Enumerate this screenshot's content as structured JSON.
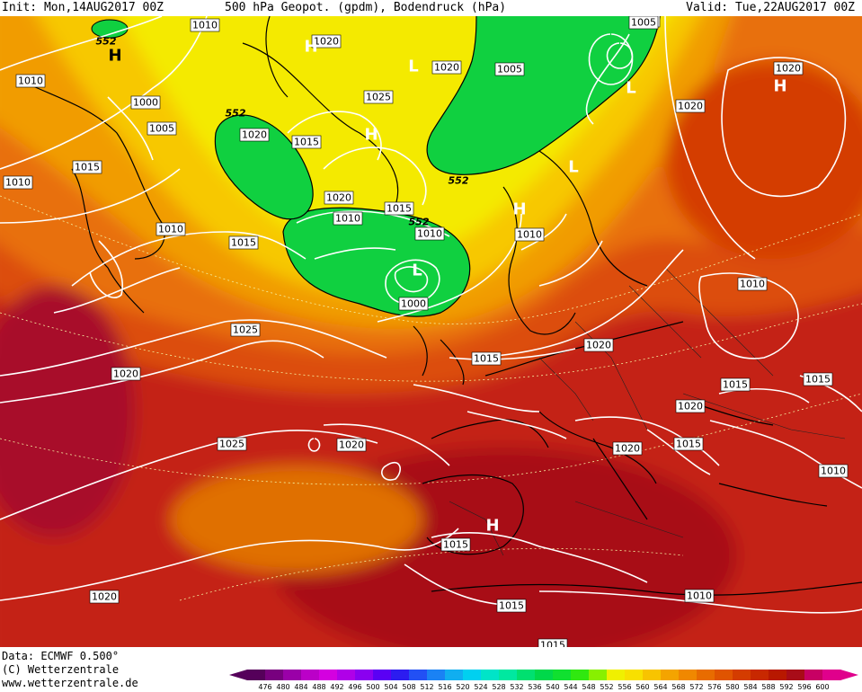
{
  "header": {
    "init": "Init: Mon,14AUG2017 00Z",
    "title": "500 hPa Geopot. (gpdm), Bodendruck (hPa)",
    "valid": "Valid: Tue,22AUG2017 00Z"
  },
  "footer": {
    "data": "Data: ECMWF  0.500°",
    "copyright": "(C) Wetterzentrale",
    "url": "www.wetterzentrale.de"
  },
  "colorbar": {
    "levels": [
      "476",
      "480",
      "484",
      "488",
      "492",
      "496",
      "500",
      "504",
      "508",
      "512",
      "516",
      "520",
      "524",
      "528",
      "532",
      "536",
      "540",
      "544",
      "548",
      "552",
      "556",
      "560",
      "564",
      "568",
      "572",
      "576",
      "580",
      "584",
      "588",
      "592",
      "596",
      "600"
    ],
    "colors": [
      "#55005a",
      "#78007f",
      "#9a00a8",
      "#bb00c8",
      "#d400e0",
      "#b000e8",
      "#8a00f0",
      "#5a00f4",
      "#2c1cf0",
      "#2250f4",
      "#1a82f4",
      "#10aef0",
      "#00d0f0",
      "#00e4c8",
      "#00e8a0",
      "#00e070",
      "#00d84a",
      "#10e030",
      "#30e810",
      "#88f000",
      "#f0f000",
      "#f8e000",
      "#f8c400",
      "#f4a400",
      "#f08800",
      "#e86c00",
      "#e05400",
      "#d43c00",
      "#c82800",
      "#b81800",
      "#a80c18",
      "#c80064",
      "#e0008c"
    ]
  },
  "isobar_labels": [
    "1010",
    "1005",
    "1000",
    "1005",
    "1015",
    "1020",
    "1010",
    "1015",
    "1020",
    "1010",
    "1015",
    "1025",
    "1010",
    "1020",
    "1015",
    "1010",
    "1015",
    "1020",
    "1025",
    "1000",
    "1005",
    "1010",
    "1020",
    "1010",
    "1005",
    "1015",
    "1020",
    "1010",
    "1015",
    "1020",
    "1025",
    "1020",
    "1010",
    "1015",
    "1025",
    "1020",
    "1020",
    "1015",
    "1020",
    "1015",
    "1010",
    "1010",
    "1020",
    "1015",
    "1015",
    "1015",
    "1010"
  ],
  "geopotential_labels": [
    "552",
    "552",
    "552",
    "552"
  ],
  "pressure_centers": [
    {
      "kind": "H",
      "label": "H"
    },
    {
      "kind": "H",
      "label": "H"
    },
    {
      "kind": "L",
      "label": "L"
    },
    {
      "kind": "H",
      "label": "H"
    },
    {
      "kind": "L",
      "label": "L"
    },
    {
      "kind": "H",
      "label": "H"
    },
    {
      "kind": "L",
      "label": "L"
    },
    {
      "kind": "H",
      "label": "H"
    },
    {
      "kind": "L",
      "label": "L"
    },
    {
      "kind": "H",
      "label": "H"
    }
  ]
}
